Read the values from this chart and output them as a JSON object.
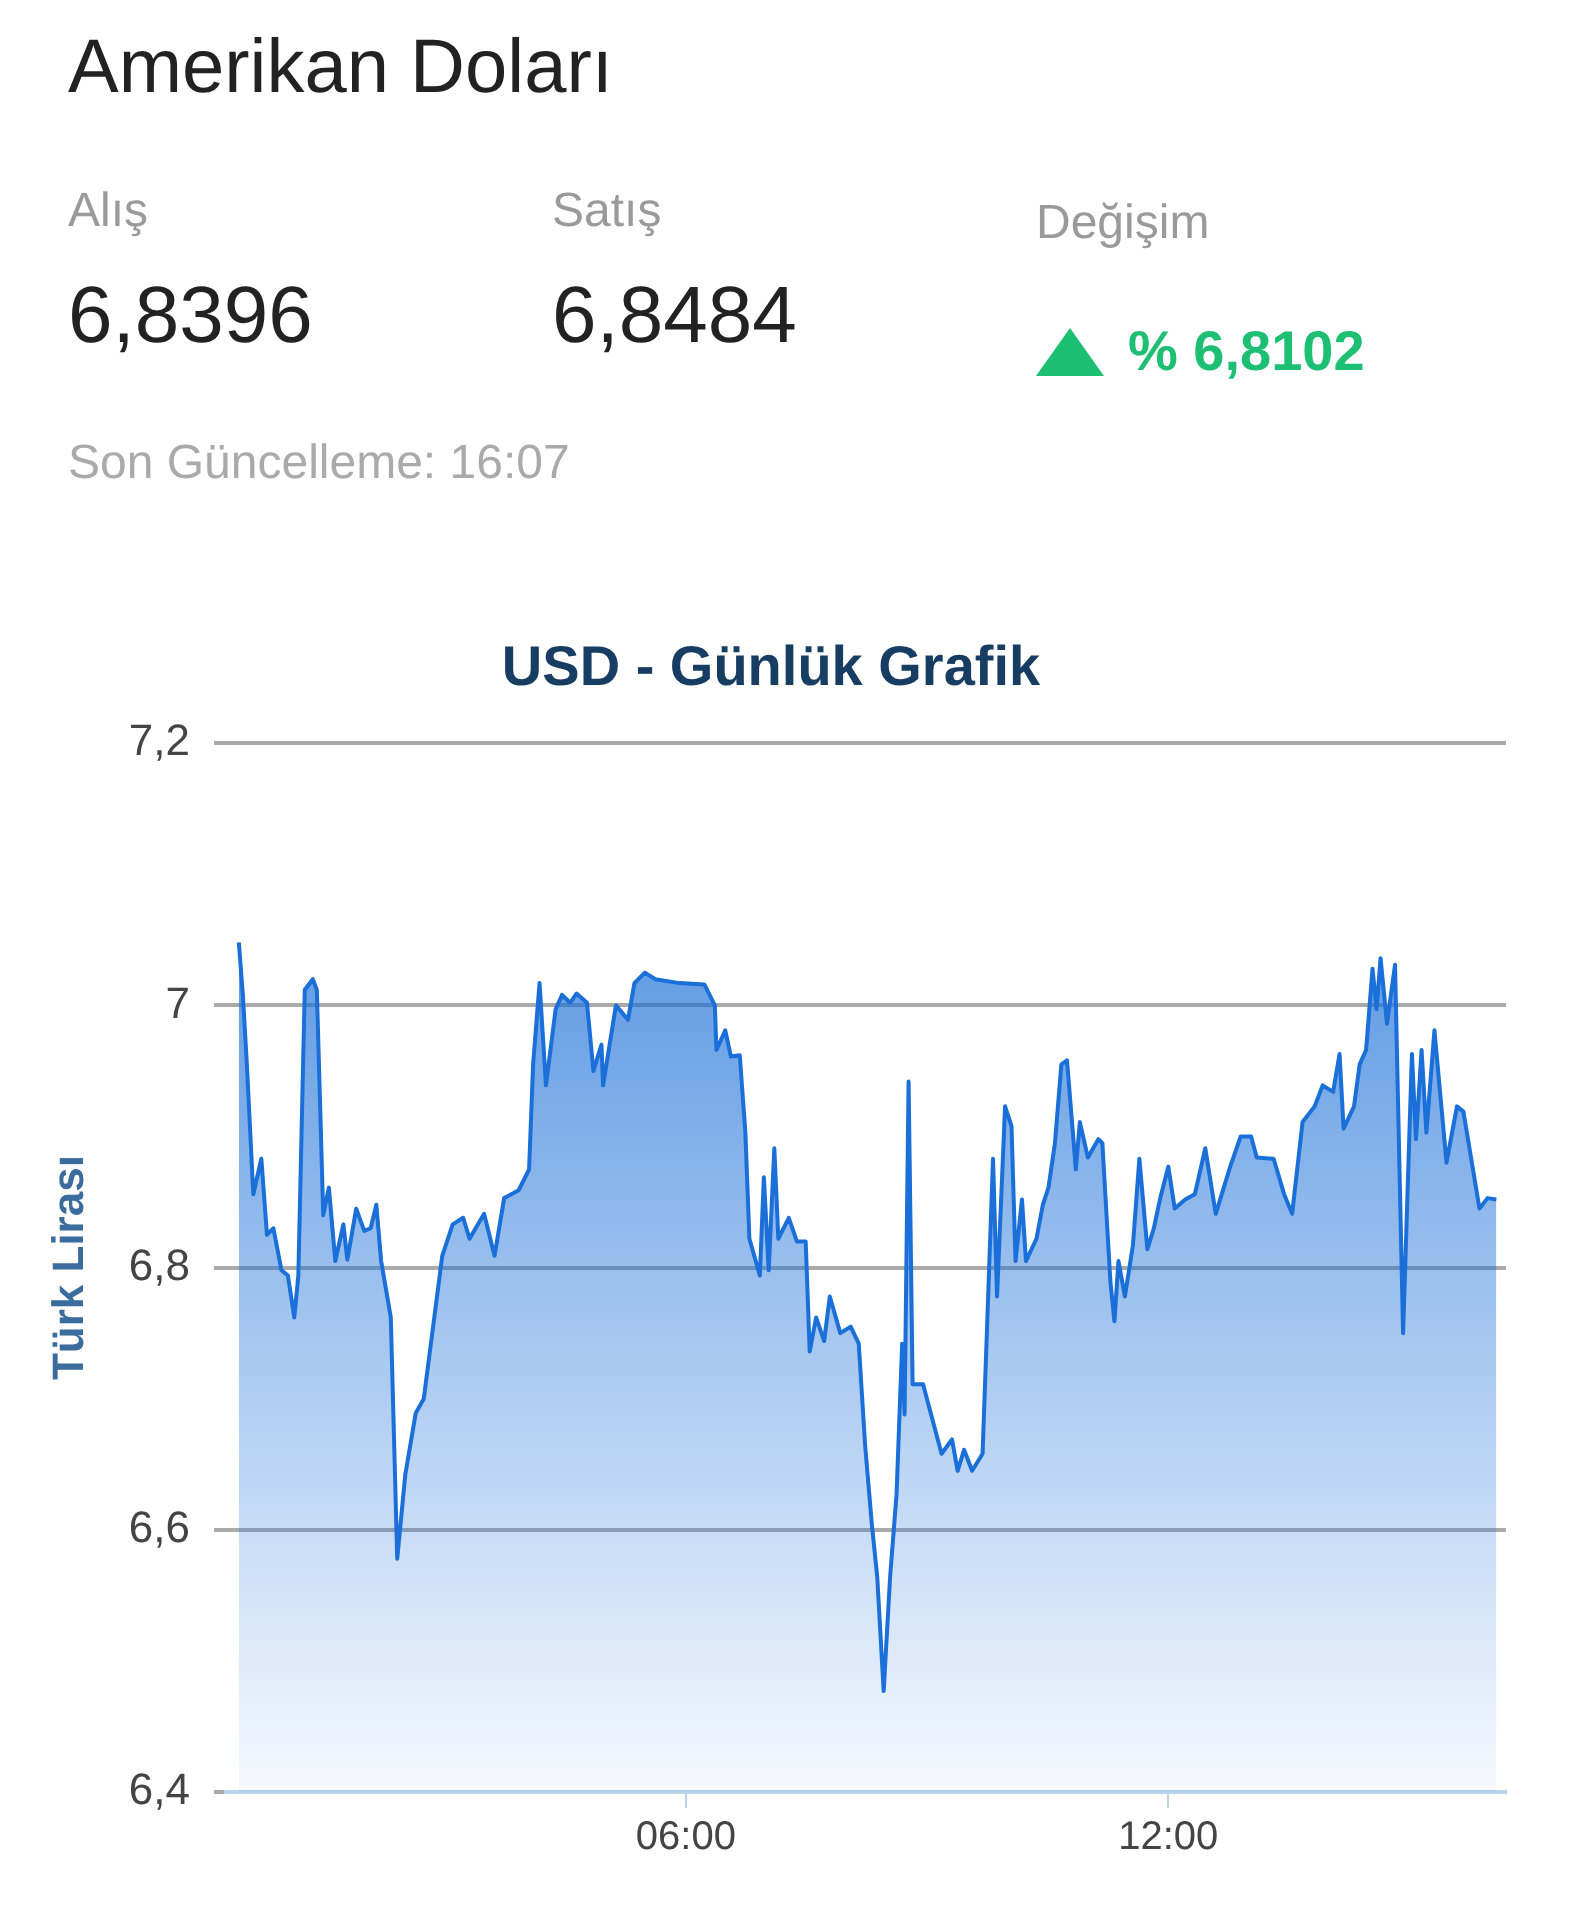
{
  "chart_data": [
    {
      "type": "other",
      "title": "Amerikan Doları",
      "annotations": [
        "Alış",
        "6,8396",
        "Satış",
        "6,8484",
        "Değişim",
        "% 6,8102",
        "Son Güncelleme: 16:07"
      ]
    },
    {
      "type": "area",
      "title": "USD - Günlük Grafik",
      "ylabel": "Türk Lirası",
      "xlim": [
        0.28,
        16.2
      ],
      "xticks": [
        {
          "value": 6,
          "label": "06:00"
        },
        {
          "value": 12,
          "label": "12:00"
        }
      ],
      "ylim": [
        6.4,
        7.2
      ],
      "yticks": [
        {
          "value": 6.4,
          "label": "6,4"
        },
        {
          "value": 6.6,
          "label": "6,6"
        },
        {
          "value": 6.8,
          "label": "6,8"
        },
        7,
        {
          "value": 7.2,
          "label": "7,2"
        }
      ],
      "grid": "y",
      "marker": "none",
      "series": [
        {
          "color": "#1a6fd8",
          "x": [
            0.44,
            0.49,
            0.54,
            0.62,
            0.72,
            0.79,
            0.87,
            0.97,
            1.05,
            1.13,
            1.18,
            1.26,
            1.36,
            1.41,
            1.49,
            1.56,
            1.64,
            1.74,
            1.79,
            1.9,
            2.0,
            2.08,
            2.15,
            2.21,
            2.33,
            2.41,
            2.51,
            2.64,
            2.74,
            2.85,
            2.97,
            3.1,
            3.23,
            3.31,
            3.49,
            3.62,
            3.74,
            3.92,
            4.05,
            4.1,
            4.18,
            4.26,
            4.38,
            4.46,
            4.56,
            4.64,
            4.77,
            4.85,
            4.95,
            4.97,
            5.08,
            5.13,
            5.28,
            5.36,
            5.49,
            5.62,
            5.92,
            6.23,
            6.36,
            6.38,
            6.49,
            6.56,
            6.67,
            6.74,
            6.79,
            6.92,
            6.97,
            7.03,
            7.1,
            7.15,
            7.28,
            7.38,
            7.49,
            7.54,
            7.62,
            7.72,
            7.79,
            7.92,
            8.05,
            8.15,
            8.23,
            8.31,
            8.38,
            8.46,
            8.54,
            8.62,
            8.69,
            8.72,
            8.77,
            8.82,
            8.95,
            9.05,
            9.18,
            9.31,
            9.38,
            9.46,
            9.56,
            9.69,
            9.82,
            9.87,
            9.97,
            10.05,
            10.1,
            10.18,
            10.23,
            10.36,
            10.44,
            10.51,
            10.59,
            10.67,
            10.74,
            10.85,
            10.9,
            11.0,
            11.13,
            11.18,
            11.28,
            11.33,
            11.38,
            11.46,
            11.56,
            11.64,
            11.74,
            11.82,
            11.9,
            12.0,
            12.08,
            12.21,
            12.33,
            12.46,
            12.59,
            12.77,
            12.9,
            13.03,
            13.1,
            13.31,
            13.44,
            13.54,
            13.67,
            13.82,
            13.92,
            14.05,
            14.13,
            14.18,
            14.31,
            14.38,
            14.46,
            14.54,
            14.59,
            14.64,
            14.72,
            14.82,
            14.92,
            15.03,
            15.08,
            15.15,
            15.21,
            15.31,
            15.46,
            15.59,
            15.67,
            15.87,
            15.97,
            16.08
          ],
          "values": [
            7.048,
            7.008,
            6.955,
            6.856,
            6.883,
            6.825,
            6.83,
            6.798,
            6.794,
            6.762,
            6.794,
            7.012,
            7.02,
            7.012,
            6.84,
            6.861,
            6.805,
            6.833,
            6.806,
            6.845,
            6.828,
            6.83,
            6.848,
            6.805,
            6.762,
            6.578,
            6.642,
            6.689,
            6.7,
            6.752,
            6.809,
            6.833,
            6.838,
            6.822,
            6.841,
            6.809,
            6.853,
            6.859,
            6.875,
            6.955,
            7.017,
            6.939,
            6.997,
            7.008,
            7.002,
            7.009,
            7.002,
            6.95,
            6.97,
            6.939,
            6.981,
            7.0,
            6.989,
            7.017,
            7.025,
            7.02,
            7.017,
            7.016,
            7.0,
            6.966,
            6.981,
            6.961,
            6.962,
            6.903,
            6.822,
            6.794,
            6.869,
            6.798,
            6.891,
            6.822,
            6.838,
            6.82,
            6.82,
            6.736,
            6.762,
            6.744,
            6.778,
            6.75,
            6.755,
            6.742,
            6.664,
            6.606,
            6.564,
            6.477,
            6.564,
            6.627,
            6.742,
            6.688,
            6.942,
            6.711,
            6.711,
            6.688,
            6.658,
            6.669,
            6.645,
            6.661,
            6.645,
            6.658,
            6.883,
            6.778,
            6.923,
            6.908,
            6.805,
            6.852,
            6.805,
            6.822,
            6.848,
            6.861,
            6.895,
            6.955,
            6.958,
            6.875,
            6.911,
            6.884,
            6.898,
            6.895,
            6.789,
            6.759,
            6.805,
            6.778,
            6.817,
            6.883,
            6.814,
            6.83,
            6.853,
            6.877,
            6.845,
            6.852,
            6.856,
            6.891,
            6.841,
            6.877,
            6.9,
            6.9,
            6.884,
            6.883,
            6.856,
            6.841,
            6.911,
            6.923,
            6.939,
            6.934,
            6.963,
            6.906,
            6.923,
            6.955,
            6.966,
            7.028,
            6.997,
            7.036,
            6.986,
            7.031,
            6.75,
            6.963,
            6.898,
            6.966,
            6.903,
            6.981,
            6.88,
            6.923,
            6.919,
            6.845,
            6.853,
            6.852
          ]
        }
      ]
    }
  ]
}
